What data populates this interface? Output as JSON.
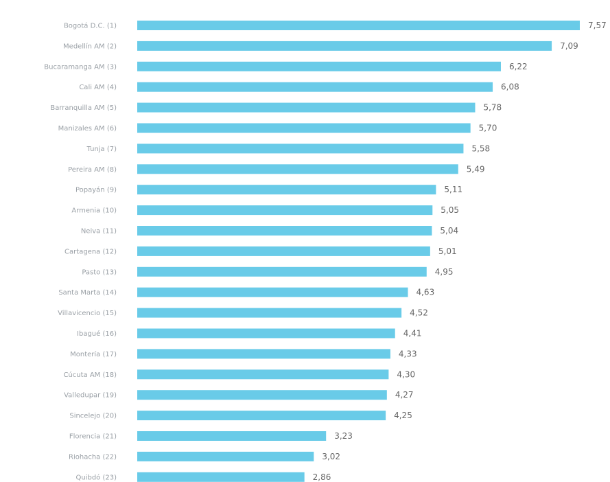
{
  "colors": {
    "bar": "#69cbe8",
    "background": "#ffffff",
    "category_text": "#9aa0a6",
    "value_text": "#666666"
  },
  "chart_data": {
    "type": "bar",
    "orientation": "horizontal",
    "title": "",
    "xlabel": "",
    "ylabel": "",
    "grid": false,
    "legend": "none",
    "xlim": [
      0,
      7.57
    ],
    "categories": [
      "Bogotá D.C. (1)",
      "Medellín AM (2)",
      "Bucaramanga AM (3)",
      "Cali AM (4)",
      "Barranquilla AM (5)",
      "Manizales AM (6)",
      "Tunja (7)",
      "Pereira AM (8)",
      "Popayán (9)",
      "Armenia (10)",
      "Neiva (11)",
      "Cartagena (12)",
      "Pasto (13)",
      "Santa Marta (14)",
      "Villavicencio (15)",
      "Ibagué (16)",
      "Montería (17)",
      "Cúcuta AM (18)",
      "Valledupar (19)",
      "Sincelejo (20)",
      "Florencia (21)",
      "Riohacha (22)",
      "Quibdó (23)"
    ],
    "values": [
      7.57,
      7.09,
      6.22,
      6.08,
      5.78,
      5.7,
      5.58,
      5.49,
      5.11,
      5.05,
      5.04,
      5.01,
      4.95,
      4.63,
      4.52,
      4.41,
      4.33,
      4.3,
      4.27,
      4.25,
      3.23,
      3.02,
      2.86
    ],
    "value_labels": [
      "7,57",
      "7,09",
      "6,22",
      "6,08",
      "5,78",
      "5,70",
      "5,58",
      "5,49",
      "5,11",
      "5,05",
      "5,04",
      "5,01",
      "4,95",
      "4,63",
      "4,52",
      "4,41",
      "4,33",
      "4,30",
      "4,27",
      "4,25",
      "3,23",
      "3,02",
      "2,86"
    ]
  }
}
